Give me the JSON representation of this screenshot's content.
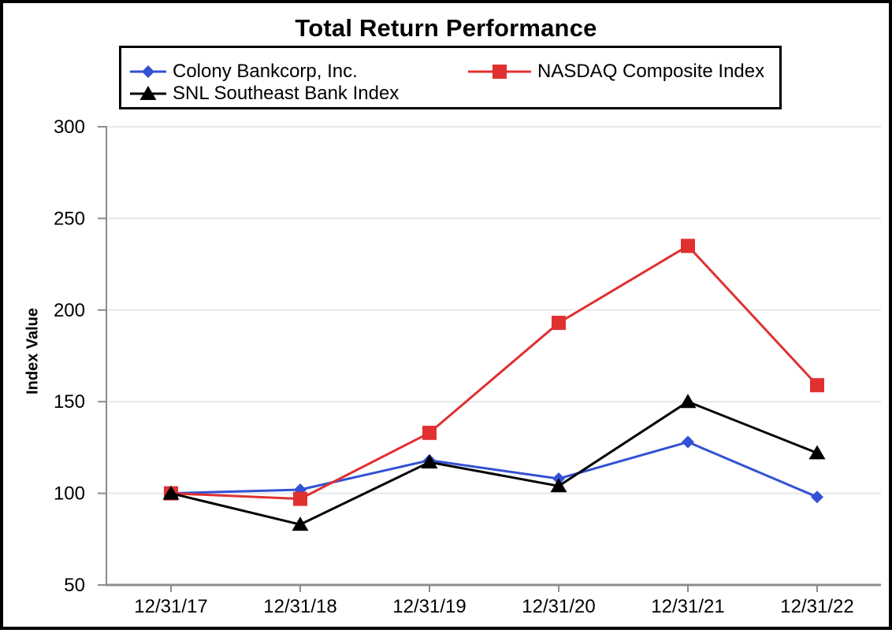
{
  "chart_data": {
    "type": "line",
    "title": "Total Return Performance",
    "xlabel": "",
    "ylabel": "Index Value",
    "categories": [
      "12/31/17",
      "12/31/18",
      "12/31/19",
      "12/31/20",
      "12/31/21",
      "12/31/22"
    ],
    "series": [
      {
        "name": "Colony Bankcorp, Inc.",
        "marker": "diamond",
        "color": "#3351D4",
        "values": [
          100,
          102,
          118,
          108,
          128,
          98
        ]
      },
      {
        "name": "NASDAQ Composite Index",
        "marker": "square",
        "color": "#E03030",
        "values": [
          100,
          97,
          133,
          193,
          235,
          159
        ]
      },
      {
        "name": "SNL Southeast Bank Index",
        "marker": "triangle",
        "color": "#000000",
        "values": [
          100,
          83,
          117,
          104,
          150,
          122
        ]
      }
    ],
    "ylim": [
      50,
      300
    ],
    "yticks": [
      50,
      100,
      150,
      200,
      250,
      300
    ],
    "grid": true,
    "legend_position": "top",
    "colors": {
      "background": "#FFFFFF",
      "frame_border": "#000000",
      "legend_border": "#000000",
      "grid": "#E8E8E8",
      "axis": "#8C8C8C",
      "text": "#000000"
    }
  }
}
